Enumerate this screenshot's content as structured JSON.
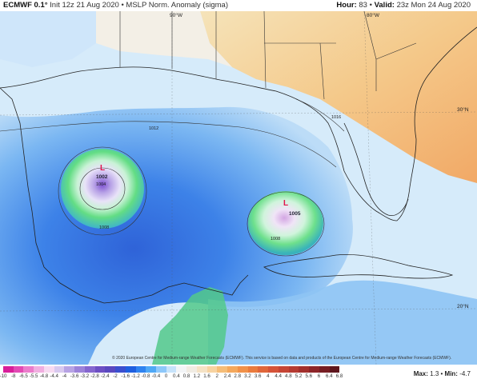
{
  "header": {
    "model": "ECMWF 0.1°",
    "init": "Init 12z 21 Aug 2020",
    "sep": "•",
    "product": "MSLP Norm. Anomaly (sigma)",
    "hour_label": "Hour:",
    "hour": "83",
    "valid_label": "Valid:",
    "valid": "23z Mon 24 Aug 2020"
  },
  "map_labels": {
    "lon_90w": "90°W",
    "lon_80w": "80°W",
    "lat_30n": "30°N",
    "lat_20n": "20°N"
  },
  "lows": [
    {
      "symbol": "L",
      "pressure": "1002",
      "color": "#e0124a"
    },
    {
      "symbol": "L",
      "pressure": "1005",
      "color": "#e0124a"
    }
  ],
  "isobars": [
    "1012",
    "1016",
    "1008",
    "1004",
    "1008",
    "1008"
  ],
  "credit": "© 2020 European Centre for Medium-range Weather Forecasts (ECMWF). This service is based on data and products of the European Centre for Medium-range Weather Forecasts (ECMWF).",
  "colorbar": {
    "ticks": [
      "-10",
      "-8",
      "-6.5",
      "-5.5",
      "-4.8",
      "-4.4",
      "-4",
      "-3.6",
      "-3.2",
      "-2.8",
      "-2.4",
      "-2",
      "-1.6",
      "-1.2",
      "-0.8",
      "-0.4",
      "0",
      "0.4",
      "0.8",
      "1.2",
      "1.6",
      "2",
      "2.4",
      "2.8",
      "3.2",
      "3.6",
      "4",
      "4.4",
      "4.8",
      "5.2",
      "5.6",
      "6",
      "6.4",
      "6.8"
    ],
    "colors": [
      "#d81e9a",
      "#e24ab4",
      "#eb7ccb",
      "#f1aee0",
      "#f7daf1",
      "#d8c9ef",
      "#b7a3e4",
      "#9c82d9",
      "#8566cf",
      "#6d4fc4",
      "#5a48c0",
      "#3b4fcf",
      "#1f5fe0",
      "#2f83f0",
      "#4fa8f6",
      "#8ec8fa",
      "#c7e3fb",
      "#f3f5f7",
      "#f1ece3",
      "#f5e2c5",
      "#f7d3a1",
      "#f5bd78",
      "#f4a85c",
      "#f19149",
      "#ea7b3d",
      "#e0663a",
      "#d55338",
      "#c64535",
      "#b53a31",
      "#a22f2c",
      "#8d2528",
      "#761d23",
      "#5e161d"
    ],
    "max_label": "Max:",
    "max": "1.3",
    "min_label": "Min:",
    "min": "-4.7"
  }
}
